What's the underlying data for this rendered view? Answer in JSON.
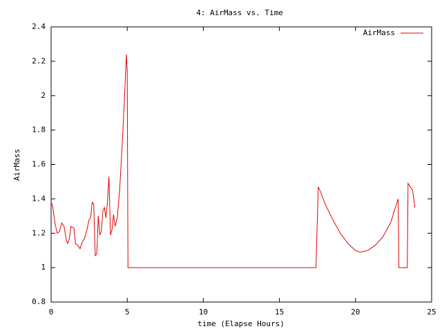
{
  "chart_data": {
    "type": "line",
    "title": "4: AirMass vs. Time",
    "x_label": "time (Elapse Hours)",
    "y_label": "AirMass",
    "x": [
      0,
      0.1,
      0.25,
      0.4,
      0.55,
      0.7,
      0.85,
      1.0,
      1.1,
      1.2,
      1.3,
      1.5,
      1.6,
      1.75,
      1.9,
      2.05,
      2.2,
      2.35,
      2.5,
      2.6,
      2.7,
      2.8,
      2.9,
      3.0,
      3.1,
      3.2,
      3.3,
      3.4,
      3.5,
      3.6,
      3.7,
      3.8,
      3.9,
      4.0,
      4.1,
      4.2,
      4.35,
      4.5,
      4.65,
      4.8,
      4.95,
      5.0,
      5.05,
      17.4,
      17.55,
      17.8,
      18.0,
      18.5,
      19.0,
      19.5,
      20.0,
      20.3,
      20.8,
      21.3,
      21.8,
      22.3,
      22.8,
      22.85,
      23.4,
      23.45,
      23.6,
      23.75,
      23.9
    ],
    "series": [
      {
        "name": "AirMass",
        "color": "#e00000",
        "values": [
          1.38,
          1.36,
          1.26,
          1.2,
          1.21,
          1.26,
          1.24,
          1.16,
          1.14,
          1.17,
          1.24,
          1.23,
          1.14,
          1.13,
          1.11,
          1.15,
          1.17,
          1.22,
          1.28,
          1.29,
          1.38,
          1.37,
          1.07,
          1.08,
          1.3,
          1.19,
          1.21,
          1.33,
          1.35,
          1.29,
          1.38,
          1.53,
          1.19,
          1.22,
          1.31,
          1.24,
          1.29,
          1.45,
          1.68,
          1.95,
          2.24,
          2.15,
          1.0,
          1.0,
          1.47,
          1.42,
          1.37,
          1.28,
          1.2,
          1.14,
          1.1,
          1.09,
          1.1,
          1.13,
          1.18,
          1.26,
          1.4,
          1.0,
          1.0,
          1.49,
          1.47,
          1.45,
          1.35
        ]
      }
    ],
    "xlim": [
      0,
      25
    ],
    "xticks": [
      0,
      5,
      10,
      15,
      20,
      25
    ],
    "ylim": [
      0.8,
      2.4
    ],
    "yticks": [
      0.8,
      1,
      1.2,
      1.4,
      1.6,
      1.8,
      2,
      2.2,
      2.4
    ],
    "legend": "top-right"
  }
}
